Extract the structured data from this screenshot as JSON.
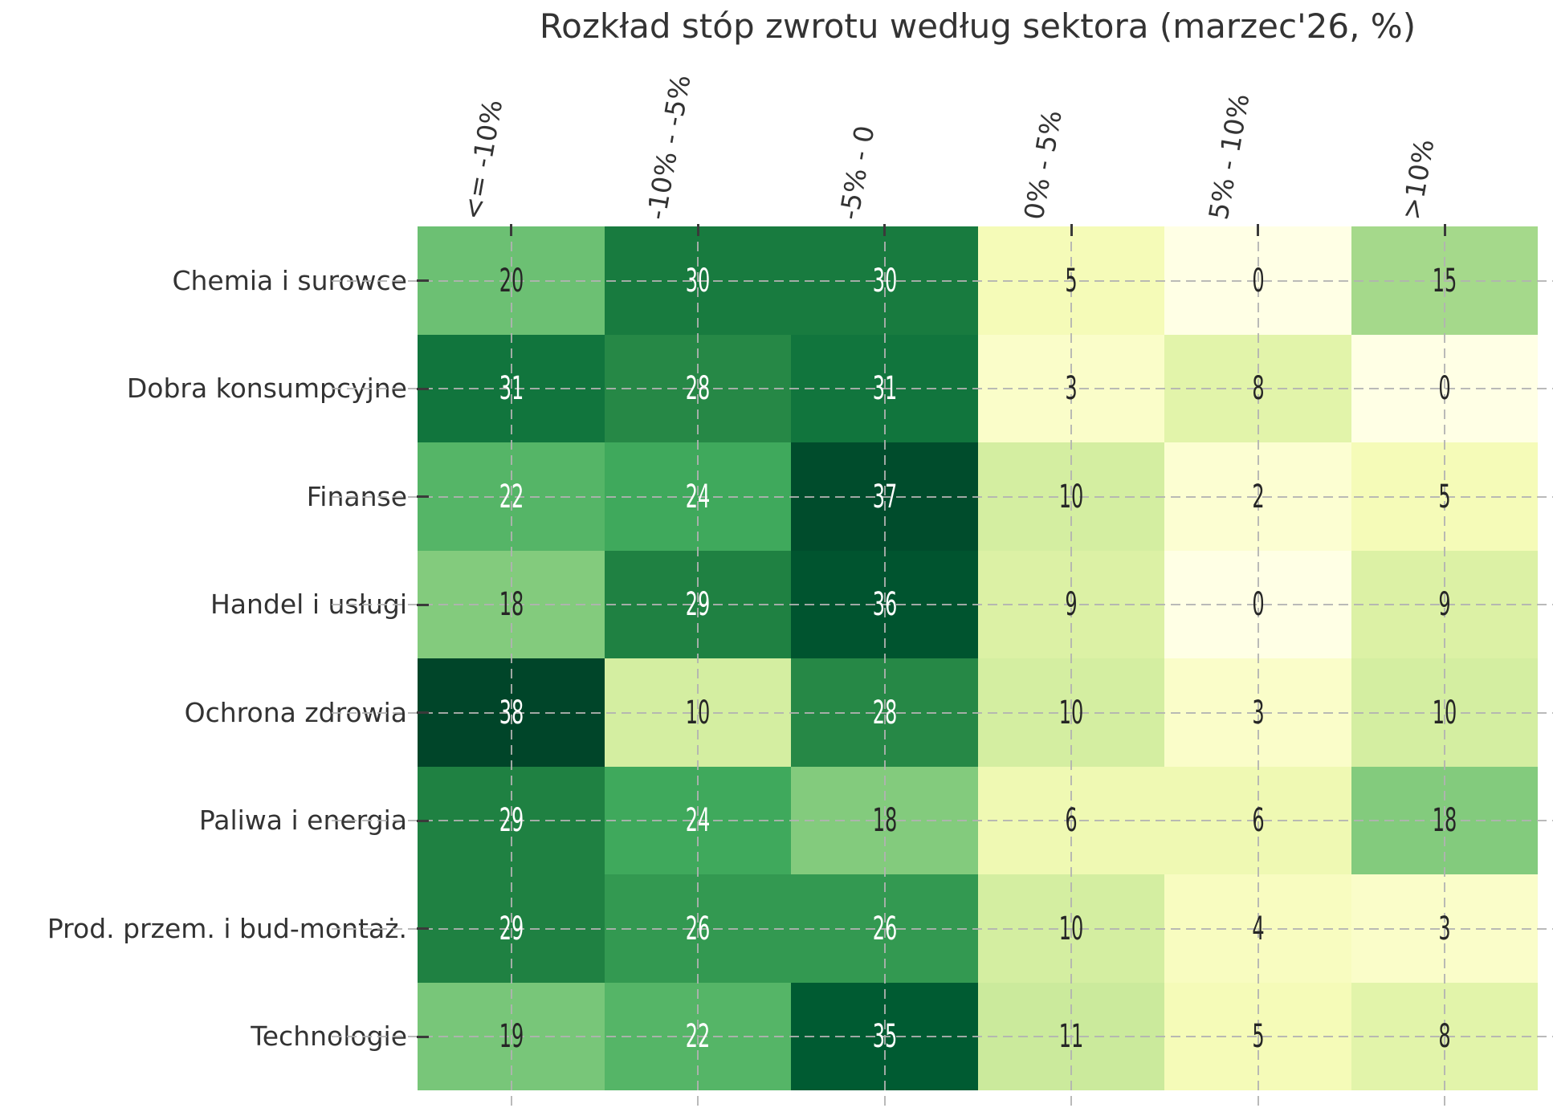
{
  "figure": {
    "background": "#ffffff"
  },
  "chart_data": {
    "type": "heatmap",
    "title": "Rozkład stóp zwrotu według sektora (marzec'26, %)",
    "x_tick_labels": [
      "<= -10%",
      "-10% - -5%",
      "-5% - 0",
      "0% - 5%",
      "5% - 10%",
      ">10%"
    ],
    "y_tick_labels": [
      "Chemia i surowce",
      "Dobra konsumpcyjne",
      "Finanse",
      "Handel i usługi",
      "Ochrona zdrowia",
      "Paliwa i energia",
      "Prod. przem. i bud-montaż.",
      "Technologie"
    ],
    "values": [
      [
        20,
        30,
        30,
        5,
        0,
        15
      ],
      [
        31,
        28,
        31,
        3,
        8,
        0
      ],
      [
        22,
        24,
        37,
        10,
        2,
        5
      ],
      [
        18,
        29,
        36,
        9,
        0,
        9
      ],
      [
        38,
        10,
        28,
        10,
        3,
        10
      ],
      [
        29,
        24,
        18,
        6,
        6,
        18
      ],
      [
        29,
        26,
        26,
        10,
        4,
        3
      ],
      [
        19,
        22,
        35,
        11,
        5,
        8
      ]
    ],
    "vmin": 0,
    "vmax": 38,
    "colormap": {
      "name": "YlGn",
      "anchors": [
        "#ffffe5",
        "#f7fcb9",
        "#d9f0a3",
        "#addd8e",
        "#78c679",
        "#41ab5d",
        "#238443",
        "#006837",
        "#004529"
      ]
    },
    "annotations": true,
    "grid": {
      "style": "dashed",
      "color": "#b2b2b2"
    },
    "axis": {
      "x_position": "top",
      "x_tick_rotation_deg": 80,
      "tick_color": "#3a3a3a",
      "label_color": "#333333"
    },
    "title_color": "#333333",
    "annot_text_colors": {
      "dark": "#262626",
      "light": "#ffffff"
    },
    "legend": "none"
  }
}
